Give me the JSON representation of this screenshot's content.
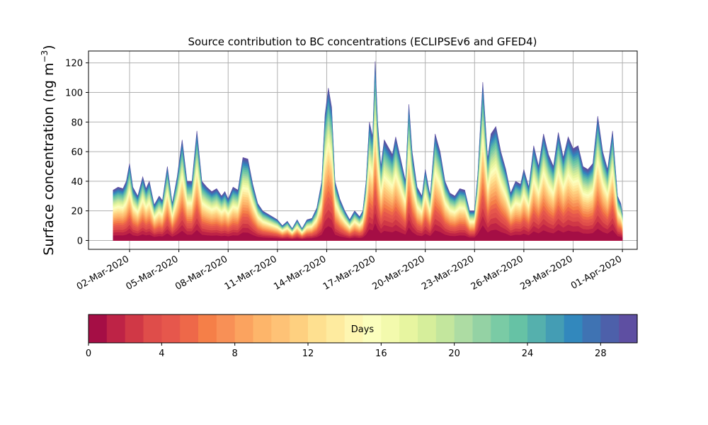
{
  "chart_data": {
    "type": "area",
    "title": "Source contribution to BC concentrations (ECLIPSEv6 and GFED4)",
    "ylabel_main": "Surface concentration (ng m",
    "ylabel_sup": "−3",
    "ylabel_close": ")",
    "xlabel": "",
    "ylim": [
      -6,
      128
    ],
    "xlim_days": [
      -1.5,
      31.9
    ],
    "grid": true,
    "yticks": [
      "0",
      "20",
      "40",
      "60",
      "80",
      "100",
      "120"
    ],
    "ytick_values": [
      0,
      20,
      40,
      60,
      80,
      100,
      120
    ],
    "xticks": [
      "02-Mar-2020",
      "05-Mar-2020",
      "08-Mar-2020",
      "11-Mar-2020",
      "14-Mar-2020",
      "17-Mar-2020",
      "20-Mar-2020",
      "23-Mar-2020",
      "26-Mar-2020",
      "29-Mar-2020",
      "01-Apr-2020"
    ],
    "xtick_days": [
      1,
      4,
      7,
      10,
      13,
      16,
      19,
      22,
      25,
      28,
      31
    ],
    "series_start_date": "01-Mar-2020",
    "total_concentration": {
      "day": [
        0.0,
        0.3,
        0.6,
        0.8,
        1.0,
        1.2,
        1.5,
        1.8,
        2.0,
        2.2,
        2.5,
        2.8,
        3.0,
        3.3,
        3.6,
        3.9,
        4.2,
        4.5,
        4.8,
        5.1,
        5.4,
        5.7,
        6.0,
        6.3,
        6.6,
        6.8,
        7.0,
        7.3,
        7.6,
        7.9,
        8.2,
        8.5,
        8.8,
        9.1,
        9.4,
        9.7,
        10.0,
        10.3,
        10.6,
        10.9,
        11.2,
        11.5,
        11.8,
        12.1,
        12.4,
        12.7,
        12.9,
        13.1,
        13.3,
        13.5,
        13.8,
        14.1,
        14.4,
        14.7,
        15.0,
        15.2,
        15.4,
        15.6,
        15.8,
        15.95,
        16.1,
        16.3,
        16.5,
        16.8,
        17.0,
        17.2,
        17.5,
        17.8,
        18.0,
        18.2,
        18.5,
        18.8,
        19.0,
        19.3,
        19.6,
        19.9,
        20.2,
        20.5,
        20.8,
        21.1,
        21.4,
        21.7,
        22.0,
        22.2,
        22.5,
        22.8,
        23.0,
        23.3,
        23.6,
        23.9,
        24.2,
        24.5,
        24.8,
        25.0,
        25.3,
        25.6,
        25.9,
        26.2,
        26.5,
        26.8,
        27.1,
        27.4,
        27.7,
        28.0,
        28.3,
        28.6,
        28.9,
        29.2,
        29.5,
        29.8,
        30.1,
        30.4,
        30.7,
        30.9,
        31.0
      ],
      "value": [
        34,
        36,
        35,
        40,
        52,
        36,
        30,
        43,
        35,
        40,
        24,
        30,
        27,
        50,
        25,
        43,
        68,
        40,
        40,
        74,
        40,
        36,
        33,
        35,
        30,
        33,
        28,
        36,
        34,
        56,
        55,
        38,
        25,
        20,
        18,
        16,
        14,
        10,
        13,
        8,
        14,
        8,
        14,
        15,
        22,
        40,
        85,
        103,
        90,
        40,
        28,
        20,
        14,
        20,
        16,
        20,
        40,
        80,
        70,
        121,
        80,
        50,
        68,
        62,
        58,
        70,
        55,
        40,
        92,
        60,
        36,
        30,
        48,
        30,
        72,
        60,
        40,
        32,
        30,
        35,
        34,
        20,
        20,
        45,
        107,
        55,
        72,
        77,
        60,
        48,
        32,
        40,
        38,
        48,
        36,
        64,
        50,
        72,
        58,
        50,
        73,
        56,
        70,
        62,
        64,
        50,
        48,
        52,
        84,
        60,
        48,
        74,
        30,
        25,
        18
      ]
    },
    "colorbar": {
      "label": "Days",
      "min": 0,
      "max": 30,
      "n_bins": 30,
      "ticks": [
        "0",
        "4",
        "8",
        "12",
        "16",
        "20",
        "24",
        "28"
      ],
      "tick_values": [
        0,
        4,
        8,
        12,
        16,
        20,
        24,
        28
      ],
      "colors": [
        "#a50e45",
        "#be2346",
        "#d03846",
        "#df4d4a",
        "#e6574c",
        "#ee6849",
        "#f57f48",
        "#f89056",
        "#fba35f",
        "#fdb56a",
        "#fec276",
        "#fed080",
        "#fee090",
        "#feeb9f",
        "#fef6b1",
        "#fbfebd",
        "#f3faad",
        "#e7f5a0",
        "#d6ee9b",
        "#c3e69d",
        "#addca3",
        "#94d2a4",
        "#7acba5",
        "#66c2a5",
        "#55b0ad",
        "#449db4",
        "#3288bd",
        "#3f73b3",
        "#4d60aa",
        "#5e4fa2"
      ]
    }
  }
}
